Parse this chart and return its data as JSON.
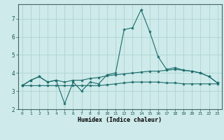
{
  "xlabel": "Humidex (Indice chaleur)",
  "ylabel": "",
  "background_color": "#ceeaea",
  "grid_color": "#aacfcf",
  "line_color": "#1a6b6b",
  "x_values": [
    0,
    1,
    2,
    3,
    4,
    5,
    6,
    7,
    8,
    9,
    10,
    11,
    12,
    13,
    14,
    15,
    16,
    17,
    18,
    19,
    20,
    21,
    22,
    23
  ],
  "series1": [
    3.3,
    3.6,
    3.8,
    3.5,
    3.6,
    2.3,
    3.5,
    3.0,
    3.5,
    3.4,
    3.9,
    4.0,
    6.4,
    6.5,
    7.5,
    6.3,
    4.9,
    4.2,
    4.3,
    4.15,
    4.1,
    4.0,
    3.8,
    3.45
  ],
  "series2": [
    3.3,
    3.6,
    3.8,
    3.5,
    3.6,
    3.5,
    3.6,
    3.6,
    3.7,
    3.75,
    3.85,
    3.9,
    3.95,
    4.0,
    4.05,
    4.1,
    4.1,
    4.15,
    4.2,
    4.15,
    4.1,
    4.0,
    3.8,
    3.45
  ],
  "series3": [
    3.3,
    3.3,
    3.3,
    3.3,
    3.3,
    3.3,
    3.3,
    3.3,
    3.3,
    3.3,
    3.35,
    3.4,
    3.45,
    3.5,
    3.5,
    3.5,
    3.5,
    3.45,
    3.45,
    3.4,
    3.4,
    3.4,
    3.4,
    3.4
  ],
  "ylim": [
    2.0,
    7.8
  ],
  "xlim": [
    -0.5,
    23.5
  ],
  "yticks": [
    2,
    3,
    4,
    5,
    6,
    7
  ],
  "xticks": [
    0,
    1,
    2,
    3,
    4,
    5,
    6,
    7,
    8,
    9,
    10,
    11,
    12,
    13,
    14,
    15,
    16,
    17,
    18,
    19,
    20,
    21,
    22,
    23
  ],
  "xtick_labels": [
    "0",
    "1",
    "2",
    "3",
    "4",
    "5",
    "6",
    "7",
    "8",
    "9",
    "10",
    "11",
    "12",
    "13",
    "14",
    "15",
    "16",
    "17",
    "18",
    "19",
    "20",
    "21",
    "22",
    "23"
  ]
}
